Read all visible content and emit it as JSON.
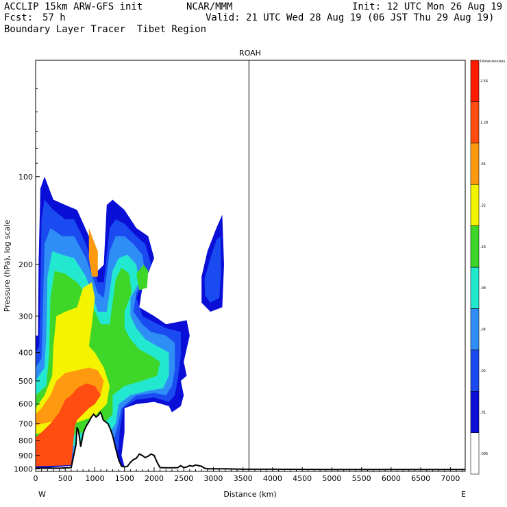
{
  "header": {
    "model": "ACCLIP 15km ARW-GFS init",
    "org": "NCAR/MMM",
    "init": "Init: 12 UTC Mon 26 Aug 19",
    "fcst_label": "Fcst:",
    "fcst_value": "57 h",
    "valid": "Valid: 21 UTC Wed 28 Aug 19 (06 JST Thu 29 Aug 19)",
    "product": "Boundary Layer Tracer  Tibet Region"
  },
  "chart_data": {
    "type": "heatmap",
    "title": "ROAH",
    "xlabel": "Distance (km)",
    "ylabel": "Pressure (hPa), log scale",
    "x_ticks": [
      0,
      500,
      1000,
      1500,
      2000,
      2500,
      3000,
      3500,
      4000,
      4500,
      5000,
      5500,
      6000,
      6500,
      7000
    ],
    "y_ticks": [
      100,
      200,
      300,
      400,
      500,
      600,
      700,
      800,
      900,
      1000
    ],
    "xlim": [
      0,
      7250
    ],
    "ylim": [
      1020,
      40
    ],
    "y_scale": "log",
    "west_label": "W",
    "east_label": "E",
    "vertical_marker_km": 3600,
    "colorbar": {
      "levels": [
        ".005",
        ".01",
        ".02",
        ".04",
        ".08",
        ".16",
        ".32",
        ".64",
        "1.28",
        "2.56",
        "Dimensionless"
      ],
      "colors": [
        "#ffffff",
        "#0a0fd8",
        "#1a4bf0",
        "#2f8ef5",
        "#23e8d0",
        "#3fd62a",
        "#f4f400",
        "#ff9a10",
        "#ff4c10",
        "#ff1a00"
      ]
    },
    "terrain": {
      "x": [
        0,
        400,
        600,
        680,
        700,
        720,
        740,
        760,
        780,
        800,
        820,
        860,
        900,
        940,
        980,
        1020,
        1060,
        1090,
        1110,
        1140,
        1180,
        1220,
        1260,
        1300,
        1350,
        1400,
        1450,
        1500,
        1550,
        1600,
        1650,
        1700,
        1750,
        1800,
        1850,
        1900,
        1950,
        2000,
        2050,
        2100,
        2200,
        2300,
        2400,
        2450,
        2500,
        2550,
        2600,
        2650,
        2700,
        2750,
        2800,
        2850,
        2900,
        3000,
        3200,
        3500,
        4000,
        5000,
        6000,
        7250
      ],
      "p": [
        995,
        995,
        990,
        830,
        720,
        740,
        780,
        840,
        800,
        760,
        740,
        710,
        690,
        665,
        650,
        665,
        655,
        640,
        650,
        680,
        690,
        700,
        730,
        770,
        850,
        930,
        980,
        985,
        980,
        950,
        930,
        920,
        890,
        900,
        915,
        905,
        890,
        900,
        950,
        990,
        992,
        992,
        990,
        975,
        990,
        985,
        975,
        980,
        970,
        975,
        980,
        995,
        1000,
        1000,
        1000,
        1003,
        1003,
        1005,
        1005,
        1005
      ]
    },
    "tracer_regions": [
      {
        "level": 1,
        "poly": [
          [
            0,
            1000
          ],
          [
            500,
            980
          ],
          [
            1000,
            960
          ],
          [
            1500,
            980
          ],
          [
            1450,
            900
          ],
          [
            1500,
            750
          ],
          [
            1500,
            620
          ],
          [
            1700,
            600
          ],
          [
            2000,
            590
          ],
          [
            2250,
            610
          ],
          [
            2300,
            640
          ],
          [
            2450,
            610
          ],
          [
            2500,
            560
          ],
          [
            2450,
            500
          ],
          [
            2550,
            480
          ],
          [
            2500,
            430
          ],
          [
            2600,
            350
          ],
          [
            2550,
            310
          ],
          [
            2200,
            320
          ],
          [
            2000,
            300
          ],
          [
            1750,
            280
          ],
          [
            1800,
            240
          ],
          [
            2000,
            190
          ],
          [
            1900,
            160
          ],
          [
            1700,
            150
          ],
          [
            1500,
            130
          ],
          [
            1300,
            120
          ],
          [
            1200,
            125
          ],
          [
            1150,
            200
          ],
          [
            1050,
            210
          ],
          [
            900,
            160
          ],
          [
            700,
            130
          ],
          [
            500,
            125
          ],
          [
            300,
            120
          ],
          [
            150,
            100
          ],
          [
            80,
            110
          ],
          [
            50,
            200
          ],
          [
            40,
            350
          ],
          [
            0,
            350
          ]
        ]
      },
      {
        "level": 2,
        "poly": [
          [
            0,
            950
          ],
          [
            500,
            940
          ],
          [
            1000,
            900
          ],
          [
            1400,
            860
          ],
          [
            1420,
            740
          ],
          [
            1480,
            620
          ],
          [
            1700,
            580
          ],
          [
            2000,
            570
          ],
          [
            2250,
            590
          ],
          [
            2350,
            560
          ],
          [
            2400,
            490
          ],
          [
            2450,
            410
          ],
          [
            2450,
            340
          ],
          [
            2200,
            330
          ],
          [
            2000,
            315
          ],
          [
            1800,
            300
          ],
          [
            1700,
            260
          ],
          [
            1800,
            230
          ],
          [
            1950,
            200
          ],
          [
            1850,
            170
          ],
          [
            1700,
            160
          ],
          [
            1500,
            145
          ],
          [
            1350,
            140
          ],
          [
            1250,
            150
          ],
          [
            1150,
            230
          ],
          [
            1050,
            230
          ],
          [
            850,
            170
          ],
          [
            650,
            140
          ],
          [
            500,
            140
          ],
          [
            300,
            130
          ],
          [
            150,
            120
          ],
          [
            100,
            140
          ],
          [
            80,
            250
          ],
          [
            60,
            380
          ],
          [
            0,
            400
          ]
        ]
      },
      {
        "level": 3,
        "poly": [
          [
            0,
            920
          ],
          [
            450,
            900
          ],
          [
            900,
            860
          ],
          [
            1300,
            820
          ],
          [
            1380,
            720
          ],
          [
            1450,
            620
          ],
          [
            1700,
            560
          ],
          [
            2000,
            550
          ],
          [
            2200,
            560
          ],
          [
            2300,
            520
          ],
          [
            2350,
            460
          ],
          [
            2350,
            370
          ],
          [
            2200,
            350
          ],
          [
            1950,
            340
          ],
          [
            1800,
            320
          ],
          [
            1650,
            290
          ],
          [
            1700,
            250
          ],
          [
            1850,
            215
          ],
          [
            1800,
            185
          ],
          [
            1650,
            170
          ],
          [
            1500,
            160
          ],
          [
            1350,
            160
          ],
          [
            1250,
            180
          ],
          [
            1150,
            260
          ],
          [
            1050,
            250
          ],
          [
            850,
            190
          ],
          [
            650,
            160
          ],
          [
            450,
            160
          ],
          [
            250,
            150
          ],
          [
            150,
            170
          ],
          [
            120,
            300
          ],
          [
            100,
            420
          ],
          [
            0,
            450
          ]
        ]
      },
      {
        "level": 4,
        "poly": [
          [
            0,
            880
          ],
          [
            400,
            860
          ],
          [
            800,
            820
          ],
          [
            1200,
            780
          ],
          [
            1350,
            700
          ],
          [
            1400,
            600
          ],
          [
            1600,
            560
          ],
          [
            1900,
            540
          ],
          [
            2150,
            530
          ],
          [
            2250,
            480
          ],
          [
            2250,
            400
          ],
          [
            2050,
            380
          ],
          [
            1850,
            360
          ],
          [
            1700,
            330
          ],
          [
            1600,
            300
          ],
          [
            1600,
            260
          ],
          [
            1750,
            230
          ],
          [
            1700,
            200
          ],
          [
            1550,
            185
          ],
          [
            1400,
            190
          ],
          [
            1300,
            210
          ],
          [
            1200,
            290
          ],
          [
            1050,
            290
          ],
          [
            850,
            220
          ],
          [
            650,
            190
          ],
          [
            450,
            185
          ],
          [
            280,
            180
          ],
          [
            200,
            220
          ],
          [
            180,
            350
          ],
          [
            150,
            450
          ],
          [
            0,
            500
          ]
        ]
      },
      {
        "level": 5,
        "poly": [
          [
            0,
            820
          ],
          [
            350,
            800
          ],
          [
            700,
            760
          ],
          [
            1100,
            720
          ],
          [
            1300,
            650
          ],
          [
            1300,
            560
          ],
          [
            1500,
            520
          ],
          [
            1800,
            500
          ],
          [
            2050,
            480
          ],
          [
            2100,
            430
          ],
          [
            1950,
            410
          ],
          [
            1750,
            390
          ],
          [
            1600,
            360
          ],
          [
            1500,
            330
          ],
          [
            1500,
            290
          ],
          [
            1620,
            250
          ],
          [
            1580,
            215
          ],
          [
            1450,
            205
          ],
          [
            1350,
            225
          ],
          [
            1250,
            320
          ],
          [
            1100,
            320
          ],
          [
            900,
            260
          ],
          [
            700,
            230
          ],
          [
            500,
            215
          ],
          [
            320,
            210
          ],
          [
            250,
            260
          ],
          [
            230,
            400
          ],
          [
            180,
            520
          ],
          [
            0,
            560
          ]
        ]
      },
      {
        "level": 6,
        "poly": [
          [
            0,
            760
          ],
          [
            300,
            740
          ],
          [
            650,
            700
          ],
          [
            1000,
            660
          ],
          [
            1200,
            600
          ],
          [
            1250,
            520
          ],
          [
            1150,
            450
          ],
          [
            1000,
            400
          ],
          [
            900,
            380
          ],
          [
            950,
            320
          ],
          [
            1000,
            260
          ],
          [
            950,
            230
          ],
          [
            800,
            240
          ],
          [
            700,
            280
          ],
          [
            500,
            290
          ],
          [
            350,
            300
          ],
          [
            300,
            380
          ],
          [
            280,
            480
          ],
          [
            150,
            560
          ],
          [
            0,
            620
          ]
        ]
      },
      {
        "level": 7,
        "poly": [
          [
            0,
            710
          ],
          [
            250,
            690
          ],
          [
            550,
            650
          ],
          [
            900,
            600
          ],
          [
            1100,
            560
          ],
          [
            1150,
            500
          ],
          [
            1050,
            460
          ],
          [
            900,
            450
          ],
          [
            700,
            460
          ],
          [
            500,
            470
          ],
          [
            350,
            500
          ],
          [
            250,
            560
          ],
          [
            100,
            620
          ],
          [
            0,
            650
          ]
        ]
      },
      {
        "level": 8,
        "poly": [
          [
            0,
            980
          ],
          [
            400,
            975
          ],
          [
            600,
            970
          ],
          [
            660,
            720
          ],
          [
            700,
            680
          ],
          [
            800,
            650
          ],
          [
            900,
            620
          ],
          [
            1000,
            600
          ],
          [
            1100,
            560
          ],
          [
            1000,
            520
          ],
          [
            850,
            510
          ],
          [
            700,
            530
          ],
          [
            600,
            560
          ],
          [
            500,
            580
          ],
          [
            400,
            640
          ],
          [
            250,
            700
          ],
          [
            100,
            750
          ],
          [
            0,
            780
          ]
        ]
      },
      {
        "level": 1,
        "poly": [
          [
            2800,
            220
          ],
          [
            2900,
            180
          ],
          [
            3050,
            150
          ],
          [
            3150,
            135
          ],
          [
            3180,
            200
          ],
          [
            3150,
            280
          ],
          [
            2950,
            290
          ],
          [
            2800,
            270
          ]
        ]
      },
      {
        "level": 2,
        "poly": [
          [
            2850,
            225
          ],
          [
            2950,
            190
          ],
          [
            3050,
            165
          ],
          [
            3120,
            160
          ],
          [
            3130,
            210
          ],
          [
            3100,
            260
          ],
          [
            2950,
            270
          ],
          [
            2860,
            255
          ]
        ]
      },
      {
        "level": 5,
        "poly": [
          [
            1700,
            215
          ],
          [
            1820,
            200
          ],
          [
            1900,
            210
          ],
          [
            1880,
            240
          ],
          [
            1750,
            245
          ]
        ]
      },
      {
        "level": 7,
        "poly": [
          [
            900,
            150
          ],
          [
            1000,
            170
          ],
          [
            1050,
            180
          ],
          [
            1050,
            220
          ],
          [
            950,
            220
          ],
          [
            900,
            190
          ]
        ]
      }
    ]
  }
}
